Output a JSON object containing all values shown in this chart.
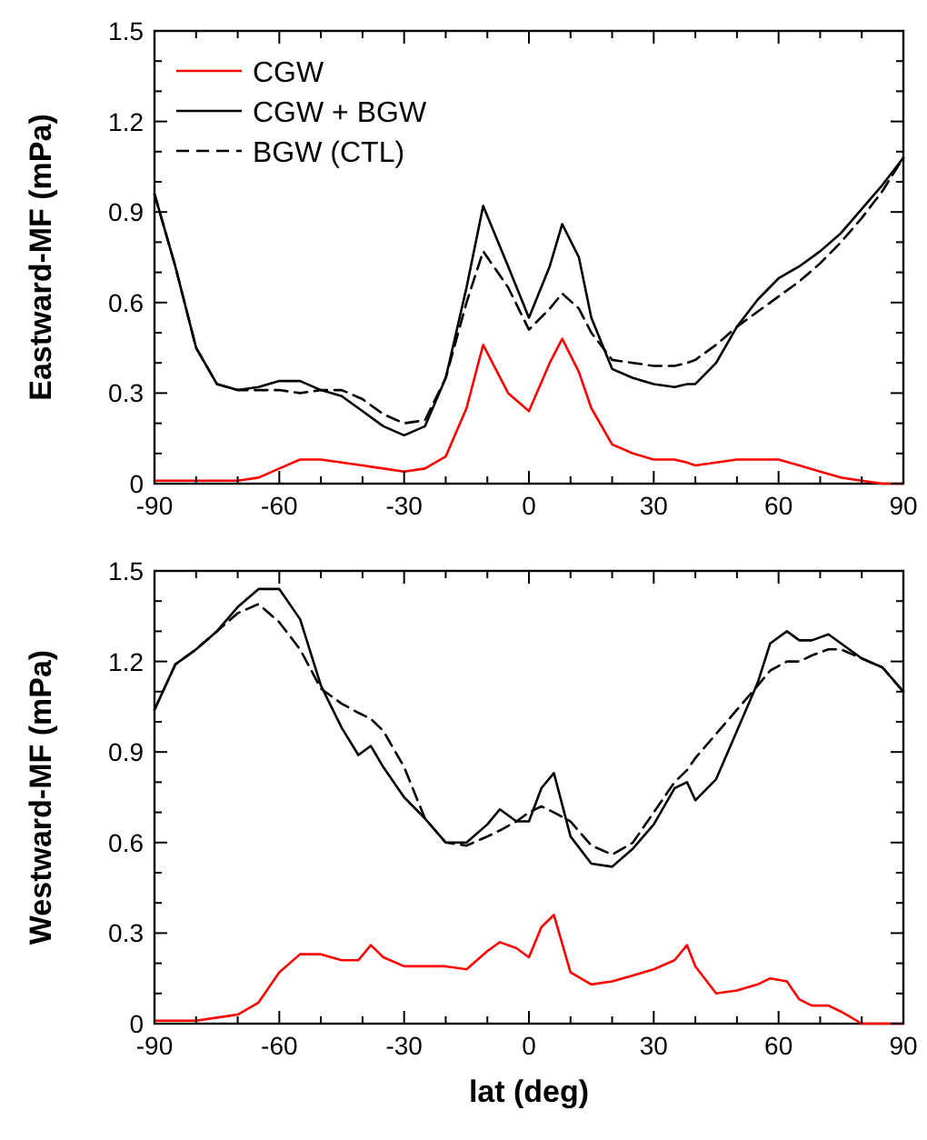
{
  "chart_data": [
    {
      "type": "line",
      "ylabel": "Eastward-MF (mPa)",
      "legend": "top left",
      "grid": false,
      "xlim": [
        -90,
        90
      ],
      "ylim": [
        0,
        1.5
      ],
      "xticks": [
        -90,
        {
          "value": -80,
          "label": null
        },
        {
          "value": -70,
          "label": null
        },
        -60,
        {
          "value": -50,
          "label": null
        },
        {
          "value": -40,
          "label": null
        },
        -30,
        {
          "value": -20,
          "label": null
        },
        {
          "value": -10,
          "label": null
        },
        0,
        {
          "value": 10,
          "label": null
        },
        {
          "value": 20,
          "label": null
        },
        30,
        {
          "value": 40,
          "label": null
        },
        {
          "value": 50,
          "label": null
        },
        60,
        {
          "value": 70,
          "label": null
        },
        {
          "value": 80,
          "label": null
        },
        90
      ],
      "yticks": [
        0,
        {
          "value": 0.1,
          "label": null
        },
        {
          "value": 0.2,
          "label": null
        },
        0.3,
        {
          "value": 0.4,
          "label": null
        },
        {
          "value": 0.5,
          "label": null
        },
        0.6,
        {
          "value": 0.7,
          "label": null
        },
        {
          "value": 0.8,
          "label": null
        },
        0.9,
        {
          "value": 1.0,
          "label": null
        },
        {
          "value": 1.1,
          "label": null
        },
        1.2,
        {
          "value": 1.3,
          "label": null
        },
        {
          "value": 1.4,
          "label": null
        },
        1.5
      ],
      "x": [
        -90,
        -85,
        -80,
        -75,
        -70,
        -65,
        -60,
        -55,
        -50,
        -45,
        -40,
        -35,
        -30,
        -25,
        -20,
        -15,
        -11,
        -5,
        0,
        5,
        8,
        12,
        15,
        20,
        25,
        30,
        35,
        38,
        40,
        45,
        50,
        55,
        60,
        65,
        70,
        75,
        80,
        85,
        90
      ],
      "series": [
        {
          "name": "CGW",
          "color": "#ff0000",
          "line_style": "solid",
          "values": [
            0.01,
            0.01,
            0.01,
            0.01,
            0.01,
            0.02,
            0.05,
            0.08,
            0.08,
            0.07,
            0.06,
            0.05,
            0.04,
            0.05,
            0.09,
            0.25,
            0.46,
            0.3,
            0.24,
            0.4,
            0.48,
            0.37,
            0.25,
            0.13,
            0.1,
            0.08,
            0.08,
            0.07,
            0.06,
            0.07,
            0.08,
            0.08,
            0.08,
            0.06,
            0.04,
            0.02,
            0.01,
            0.0,
            0.0
          ]
        },
        {
          "name": "CGW + BGW",
          "color": "#000000",
          "line_style": "solid",
          "values": [
            0.96,
            0.72,
            0.45,
            0.33,
            0.31,
            0.32,
            0.34,
            0.34,
            0.31,
            0.29,
            0.24,
            0.19,
            0.16,
            0.19,
            0.35,
            0.65,
            0.92,
            0.72,
            0.55,
            0.72,
            0.86,
            0.75,
            0.55,
            0.38,
            0.35,
            0.33,
            0.32,
            0.33,
            0.33,
            0.4,
            0.52,
            0.61,
            0.68,
            0.72,
            0.77,
            0.83,
            0.91,
            0.99,
            1.08
          ]
        },
        {
          "name": "BGW (CTL)",
          "color": "#000000",
          "line_style": "dashed",
          "values": [
            0.96,
            0.72,
            0.45,
            0.33,
            0.31,
            0.31,
            0.31,
            0.3,
            0.31,
            0.31,
            0.28,
            0.23,
            0.2,
            0.21,
            0.35,
            0.6,
            0.77,
            0.65,
            0.51,
            0.58,
            0.63,
            0.58,
            0.5,
            0.41,
            0.4,
            0.39,
            0.39,
            0.4,
            0.41,
            0.46,
            0.52,
            0.57,
            0.62,
            0.67,
            0.73,
            0.8,
            0.88,
            0.97,
            1.08
          ]
        }
      ]
    },
    {
      "type": "line",
      "ylabel": "Westward-MF (mPa)",
      "xlabel": "lat (deg)",
      "grid": false,
      "xlim": [
        -90,
        90
      ],
      "ylim": [
        0,
        1.5
      ],
      "xticks": [
        -90,
        {
          "value": -80,
          "label": null
        },
        {
          "value": -70,
          "label": null
        },
        -60,
        {
          "value": -50,
          "label": null
        },
        {
          "value": -40,
          "label": null
        },
        -30,
        {
          "value": -20,
          "label": null
        },
        {
          "value": -10,
          "label": null
        },
        0,
        {
          "value": 10,
          "label": null
        },
        {
          "value": 20,
          "label": null
        },
        30,
        {
          "value": 40,
          "label": null
        },
        {
          "value": 50,
          "label": null
        },
        60,
        {
          "value": 70,
          "label": null
        },
        {
          "value": 80,
          "label": null
        },
        90
      ],
      "yticks": [
        0,
        {
          "value": 0.1,
          "label": null
        },
        {
          "value": 0.2,
          "label": null
        },
        0.3,
        {
          "value": 0.4,
          "label": null
        },
        {
          "value": 0.5,
          "label": null
        },
        0.6,
        {
          "value": 0.7,
          "label": null
        },
        {
          "value": 0.8,
          "label": null
        },
        0.9,
        {
          "value": 1.0,
          "label": null
        },
        {
          "value": 1.1,
          "label": null
        },
        1.2,
        {
          "value": 1.3,
          "label": null
        },
        {
          "value": 1.4,
          "label": null
        },
        1.5
      ],
      "x": [
        -90,
        -85,
        -80,
        -75,
        -70,
        -65,
        -60,
        -55,
        -50,
        -45,
        -41,
        -38,
        -35,
        -30,
        -25,
        -20,
        -15,
        -10,
        -7,
        -3,
        0,
        3,
        6,
        10,
        15,
        20,
        25,
        30,
        35,
        38,
        40,
        45,
        50,
        55,
        58,
        62,
        65,
        68,
        72,
        75,
        80,
        85,
        90
      ],
      "series": [
        {
          "color": "#ff0000",
          "line_style": "solid",
          "values": [
            0.01,
            0.01,
            0.01,
            0.02,
            0.03,
            0.07,
            0.17,
            0.23,
            0.23,
            0.21,
            0.21,
            0.26,
            0.22,
            0.19,
            0.19,
            0.19,
            0.18,
            0.24,
            0.27,
            0.25,
            0.22,
            0.32,
            0.36,
            0.17,
            0.13,
            0.14,
            0.16,
            0.18,
            0.21,
            0.26,
            0.19,
            0.1,
            0.11,
            0.13,
            0.15,
            0.14,
            0.08,
            0.06,
            0.06,
            0.04,
            0.0,
            0.0,
            0.0
          ]
        },
        {
          "color": "#000000",
          "line_style": "solid",
          "values": [
            1.04,
            1.19,
            1.24,
            1.3,
            1.38,
            1.44,
            1.44,
            1.34,
            1.12,
            0.98,
            0.89,
            0.92,
            0.85,
            0.75,
            0.68,
            0.6,
            0.6,
            0.66,
            0.71,
            0.67,
            0.67,
            0.78,
            0.83,
            0.62,
            0.53,
            0.52,
            0.58,
            0.66,
            0.78,
            0.8,
            0.74,
            0.81,
            0.97,
            1.13,
            1.26,
            1.3,
            1.27,
            1.27,
            1.29,
            1.26,
            1.21,
            1.18,
            1.1
          ]
        },
        {
          "color": "#000000",
          "line_style": "dashed",
          "values": [
            1.04,
            1.19,
            1.24,
            1.3,
            1.36,
            1.39,
            1.33,
            1.24,
            1.11,
            1.06,
            1.03,
            1.01,
            0.97,
            0.85,
            0.68,
            0.6,
            0.59,
            0.62,
            0.64,
            0.67,
            0.7,
            0.72,
            0.7,
            0.67,
            0.59,
            0.56,
            0.6,
            0.7,
            0.8,
            0.84,
            0.88,
            0.96,
            1.04,
            1.12,
            1.17,
            1.2,
            1.2,
            1.22,
            1.24,
            1.24,
            1.21,
            1.18,
            1.1
          ]
        }
      ]
    }
  ]
}
